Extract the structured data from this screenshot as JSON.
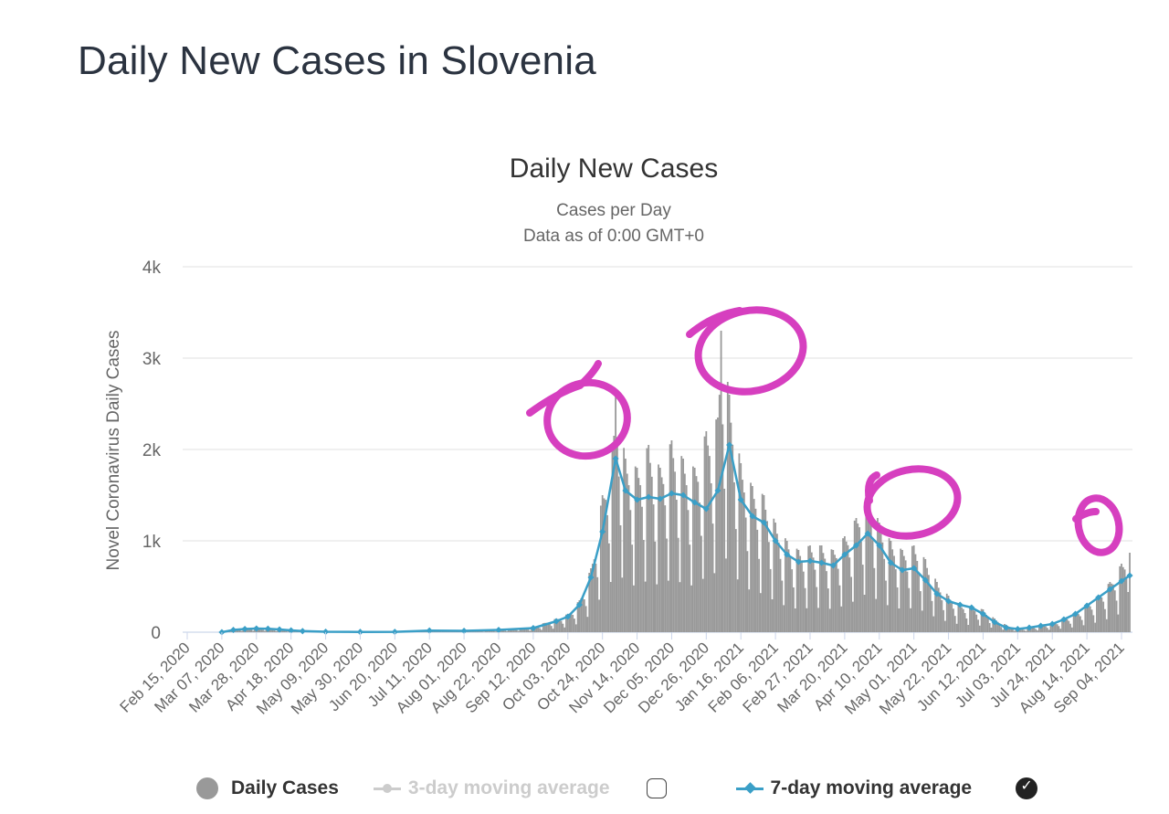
{
  "page": {
    "title": "Daily New Cases in Slovenia"
  },
  "legend": {
    "daily_cases": "Daily Cases",
    "three_day": "3-day moving average",
    "seven_day": "7-day moving average",
    "three_day_checked": false,
    "seven_day_checked": true,
    "checkmark_glyph": "✓"
  },
  "colors": {
    "bars": "#999999",
    "seven_day_line": "#3a9fc7",
    "three_day_disabled": "#cccccc",
    "annotation": "#d63fbf",
    "grid": "#e6e6e6"
  },
  "chart_data": {
    "type": "bar",
    "title": "Daily New Cases",
    "subtitle_lines": [
      "Cases per Day",
      "Data as of 0:00 GMT+0"
    ],
    "xlabel": "",
    "ylabel": "Novel Coronavirus Daily Cases",
    "ylim": [
      0,
      4000
    ],
    "yticks": [
      0,
      1000,
      2000,
      3000,
      4000
    ],
    "ytick_labels": [
      "0",
      "1k",
      "2k",
      "3k",
      "4k"
    ],
    "x_tick_labels": [
      "Feb 15, 2020",
      "Mar 07, 2020",
      "Mar 28, 2020",
      "Apr 18, 2020",
      "May 09, 2020",
      "May 30, 2020",
      "Jun 20, 2020",
      "Jul 11, 2020",
      "Aug 01, 2020",
      "Aug 22, 2020",
      "Sep 12, 2020",
      "Oct 03, 2020",
      "Oct 24, 2020",
      "Nov 14, 2020",
      "Dec 05, 2020",
      "Dec 26, 2020",
      "Jan 16, 2021",
      "Feb 06, 2021",
      "Feb 27, 2021",
      "Mar 20, 2021",
      "Apr 10, 2021",
      "May 01, 2021",
      "May 22, 2021",
      "Jun 12, 2021",
      "Jul 03, 2021",
      "Jul 24, 2021",
      "Aug 14, 2021",
      "Sep 04, 2021"
    ],
    "grid": true,
    "legend_position": "bottom",
    "series": [
      {
        "name": "Daily Cases",
        "kind": "bar",
        "points": [
          [
            "Mar 07, 2020",
            0
          ],
          [
            "Mar 14, 2020",
            40
          ],
          [
            "Mar 21, 2020",
            50
          ],
          [
            "Mar 28, 2020",
            55
          ],
          [
            "Apr 04, 2020",
            50
          ],
          [
            "Apr 11, 2020",
            35
          ],
          [
            "Apr 18, 2020",
            25
          ],
          [
            "Apr 25, 2020",
            15
          ],
          [
            "May 09, 2020",
            5
          ],
          [
            "Jun 20, 2020",
            5
          ],
          [
            "Jul 11, 2020",
            20
          ],
          [
            "Aug 01, 2020",
            15
          ],
          [
            "Aug 22, 2020",
            30
          ],
          [
            "Sep 12, 2020",
            60
          ],
          [
            "Sep 26, 2020",
            150
          ],
          [
            "Oct 03, 2020",
            200
          ],
          [
            "Oct 10, 2020",
            350
          ],
          [
            "Oct 17, 2020",
            700
          ],
          [
            "Oct 24, 2020",
            1500
          ],
          [
            "Oct 31, 2020",
            2150
          ],
          [
            "Nov 01, 2020",
            2600
          ],
          [
            "Nov 07, 2020",
            1900
          ],
          [
            "Nov 14, 2020",
            1800
          ],
          [
            "Nov 21, 2020",
            2050
          ],
          [
            "Nov 28, 2020",
            1800
          ],
          [
            "Dec 05, 2020",
            2100
          ],
          [
            "Dec 12, 2020",
            1900
          ],
          [
            "Dec 19, 2020",
            1800
          ],
          [
            "Dec 26, 2020",
            2200
          ],
          [
            "Jan 02, 2021",
            2350
          ],
          [
            "Jan 04, 2021",
            3300
          ],
          [
            "Jan 09, 2021",
            2600
          ],
          [
            "Jan 16, 2021",
            1850
          ],
          [
            "Jan 23, 2021",
            1600
          ],
          [
            "Jan 30, 2021",
            1500
          ],
          [
            "Feb 06, 2021",
            1200
          ],
          [
            "Feb 13, 2021",
            1000
          ],
          [
            "Feb 20, 2021",
            900
          ],
          [
            "Feb 27, 2021",
            950
          ],
          [
            "Mar 06, 2021",
            950
          ],
          [
            "Mar 13, 2021",
            900
          ],
          [
            "Mar 20, 2021",
            1050
          ],
          [
            "Mar 27, 2021",
            1250
          ],
          [
            "Apr 03, 2021",
            1550
          ],
          [
            "Apr 10, 2021",
            1200
          ],
          [
            "Apr 17, 2021",
            1000
          ],
          [
            "Apr 24, 2021",
            900
          ],
          [
            "May 01, 2021",
            950
          ],
          [
            "May 08, 2021",
            800
          ],
          [
            "May 15, 2021",
            550
          ],
          [
            "May 22, 2021",
            400
          ],
          [
            "May 29, 2021",
            300
          ],
          [
            "Jun 05, 2021",
            280
          ],
          [
            "Jun 12, 2021",
            250
          ],
          [
            "Jun 19, 2021",
            150
          ],
          [
            "Jun 26, 2021",
            80
          ],
          [
            "Jul 03, 2021",
            40
          ],
          [
            "Jul 10, 2021",
            50
          ],
          [
            "Jul 17, 2021",
            80
          ],
          [
            "Jul 24, 2021",
            100
          ],
          [
            "Jul 31, 2021",
            150
          ],
          [
            "Aug 07, 2021",
            200
          ],
          [
            "Aug 14, 2021",
            300
          ],
          [
            "Aug 21, 2021",
            400
          ],
          [
            "Aug 28, 2021",
            550
          ],
          [
            "Sep 04, 2021",
            750
          ],
          [
            "Sep 09, 2021",
            870
          ]
        ]
      },
      {
        "name": "7-day moving average",
        "kind": "line",
        "points": [
          [
            "Mar 07, 2020",
            0
          ],
          [
            "Mar 14, 2020",
            25
          ],
          [
            "Mar 21, 2020",
            35
          ],
          [
            "Mar 28, 2020",
            40
          ],
          [
            "Apr 04, 2020",
            38
          ],
          [
            "Apr 11, 2020",
            30
          ],
          [
            "Apr 18, 2020",
            20
          ],
          [
            "Apr 25, 2020",
            12
          ],
          [
            "May 09, 2020",
            5
          ],
          [
            "May 30, 2020",
            3
          ],
          [
            "Jun 20, 2020",
            4
          ],
          [
            "Jul 11, 2020",
            18
          ],
          [
            "Aug 01, 2020",
            15
          ],
          [
            "Aug 22, 2020",
            25
          ],
          [
            "Sep 12, 2020",
            45
          ],
          [
            "Sep 26, 2020",
            120
          ],
          [
            "Oct 03, 2020",
            170
          ],
          [
            "Oct 10, 2020",
            300
          ],
          [
            "Oct 17, 2020",
            600
          ],
          [
            "Oct 24, 2020",
            1100
          ],
          [
            "Nov 01, 2020",
            1900
          ],
          [
            "Nov 07, 2020",
            1550
          ],
          [
            "Nov 14, 2020",
            1450
          ],
          [
            "Nov 21, 2020",
            1480
          ],
          [
            "Nov 28, 2020",
            1460
          ],
          [
            "Dec 05, 2020",
            1520
          ],
          [
            "Dec 12, 2020",
            1500
          ],
          [
            "Dec 19, 2020",
            1420
          ],
          [
            "Dec 26, 2020",
            1350
          ],
          [
            "Jan 02, 2021",
            1550
          ],
          [
            "Jan 09, 2021",
            2050
          ],
          [
            "Jan 16, 2021",
            1450
          ],
          [
            "Jan 23, 2021",
            1270
          ],
          [
            "Jan 30, 2021",
            1200
          ],
          [
            "Feb 06, 2021",
            1000
          ],
          [
            "Feb 13, 2021",
            850
          ],
          [
            "Feb 20, 2021",
            770
          ],
          [
            "Feb 27, 2021",
            780
          ],
          [
            "Mar 06, 2021",
            760
          ],
          [
            "Mar 13, 2021",
            730
          ],
          [
            "Mar 20, 2021",
            850
          ],
          [
            "Mar 27, 2021",
            950
          ],
          [
            "Apr 03, 2021",
            1080
          ],
          [
            "Apr 10, 2021",
            950
          ],
          [
            "Apr 17, 2021",
            760
          ],
          [
            "Apr 24, 2021",
            680
          ],
          [
            "May 01, 2021",
            700
          ],
          [
            "May 08, 2021",
            570
          ],
          [
            "May 15, 2021",
            420
          ],
          [
            "May 22, 2021",
            340
          ],
          [
            "May 29, 2021",
            300
          ],
          [
            "Jun 05, 2021",
            270
          ],
          [
            "Jun 12, 2021",
            200
          ],
          [
            "Jun 19, 2021",
            110
          ],
          [
            "Jun 26, 2021",
            50
          ],
          [
            "Jul 03, 2021",
            35
          ],
          [
            "Jul 10, 2021",
            50
          ],
          [
            "Jul 17, 2021",
            70
          ],
          [
            "Jul 24, 2021",
            90
          ],
          [
            "Jul 31, 2021",
            140
          ],
          [
            "Aug 07, 2021",
            200
          ],
          [
            "Aug 14, 2021",
            290
          ],
          [
            "Aug 21, 2021",
            380
          ],
          [
            "Aug 28, 2021",
            470
          ],
          [
            "Sep 04, 2021",
            560
          ],
          [
            "Sep 09, 2021",
            620
          ]
        ]
      }
    ]
  }
}
